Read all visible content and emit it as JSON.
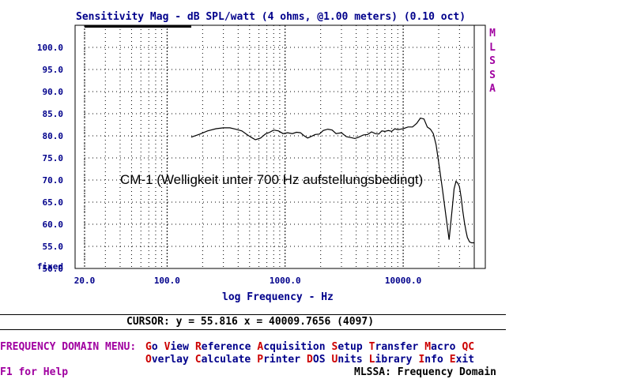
{
  "window_title": "Sensitivity Mag - dB SPL/watt (4 ohms, @1.00 meters) (0.10 oct)",
  "brand_letters": [
    "M",
    "L",
    "S",
    "S",
    "A"
  ],
  "annotation": "CM-1 (Welligkeit unter 700 Hz aufstellungsbedingt)",
  "fixed_label": "fixed",
  "cursor_readout": "CURSOR: y = 55.816 x = 40009.7656 (4097)",
  "menu": {
    "title": "FREQUENCY DOMAIN MENU:",
    "row1": [
      {
        "hk": "G",
        "rest": "o"
      },
      {
        "hk": "V",
        "rest": "iew"
      },
      {
        "hk": "R",
        "rest": "eference"
      },
      {
        "hk": "A",
        "rest": "cquisition"
      },
      {
        "hk": "S",
        "rest": "etup"
      },
      {
        "hk": "T",
        "rest": "ransfer"
      },
      {
        "hk": "M",
        "rest": "acro"
      },
      {
        "hk": "QC",
        "rest": ""
      }
    ],
    "row2": [
      {
        "hk": "O",
        "rest": "verlay"
      },
      {
        "hk": "C",
        "rest": "alculate"
      },
      {
        "hk": "P",
        "rest": "rinter"
      },
      {
        "hk": "D",
        "rest": "OS"
      },
      {
        "hk": "U",
        "rest": "nits"
      },
      {
        "hk": "L",
        "rest": "ibrary"
      },
      {
        "hk": "I",
        "rest": "nfo"
      },
      {
        "hk": "E",
        "rest": "xit"
      }
    ]
  },
  "help_text": "F1 for Help",
  "status_text": "MLSSA: Frequency Domain",
  "colors": {
    "axis_text": "#00008b",
    "brand": "#a000a0",
    "hotkey": "#cc0000",
    "trace": "#000000"
  },
  "chart_data": {
    "type": "line",
    "title": "Sensitivity Mag - dB SPL/watt (4 ohms, @1.00 meters) (0.10 oct)",
    "xlabel": "log Frequency - Hz",
    "ylabel": "",
    "x_scale": "log",
    "xlim": [
      20,
      40000
    ],
    "ylim": [
      50,
      105
    ],
    "x_ticks": [
      {
        "v": 20,
        "label": "20.0"
      },
      {
        "v": 100,
        "label": "100.0"
      },
      {
        "v": 1000,
        "label": "1000.0"
      },
      {
        "v": 10000,
        "label": "10000.0"
      }
    ],
    "y_ticks": [
      {
        "v": 100,
        "label": "100.0"
      },
      {
        "v": 95,
        "label": "95.0"
      },
      {
        "v": 90,
        "label": "90.0"
      },
      {
        "v": 85,
        "label": "85.0"
      },
      {
        "v": 80,
        "label": "80.0"
      },
      {
        "v": 75,
        "label": "75.0"
      },
      {
        "v": 70,
        "label": "70.0"
      },
      {
        "v": 65,
        "label": "65.0"
      },
      {
        "v": 60,
        "label": "60.0"
      },
      {
        "v": 55,
        "label": "55.0"
      },
      {
        "v": 50,
        "label": "50.0"
      }
    ],
    "grid": true,
    "series": [
      {
        "x": [
          160,
          190,
          220,
          260,
          300,
          340,
          380,
          430,
          480,
          520,
          560,
          620,
          680,
          740,
          800,
          880,
          960,
          1050,
          1150,
          1250,
          1350,
          1450,
          1550,
          1650,
          1800,
          1950,
          2100,
          2300,
          2500,
          2700,
          3000,
          3300,
          3600,
          3900,
          4200,
          4600,
          5000,
          5400,
          5800,
          6200,
          6600,
          7000,
          7500,
          8000,
          8500,
          9000,
          10000,
          11000,
          12000,
          13000,
          14000,
          15000,
          16000,
          17000,
          18000,
          19000,
          20000,
          21500,
          23000,
          24500,
          26000,
          27000,
          28000,
          29000,
          30000,
          31000,
          32000,
          33000,
          34000,
          35000,
          36500,
          38000,
          40000
        ],
        "y": [
          79.7,
          80.4,
          81.1,
          81.6,
          81.8,
          81.8,
          81.5,
          81.1,
          80.2,
          79.6,
          79.1,
          79.5,
          80.4,
          80.8,
          81.3,
          81.1,
          80.5,
          80.7,
          80.5,
          80.8,
          80.7,
          80.0,
          79.5,
          79.8,
          80.3,
          80.4,
          81.2,
          81.5,
          81.3,
          80.5,
          80.7,
          79.8,
          79.6,
          79.4,
          79.7,
          80.2,
          80.3,
          80.9,
          80.5,
          80.4,
          81.1,
          81.0,
          81.2,
          81.0,
          81.6,
          81.4,
          81.6,
          82.0,
          82.0,
          82.8,
          84.0,
          83.8,
          82.0,
          81.5,
          80.5,
          78.0,
          74.0,
          68.0,
          62.0,
          56.5,
          63.5,
          68.0,
          69.7,
          69.3,
          68.5,
          66.0,
          63.0,
          60.5,
          58.5,
          57.0,
          56.0,
          55.8,
          55.8
        ]
      }
    ]
  }
}
